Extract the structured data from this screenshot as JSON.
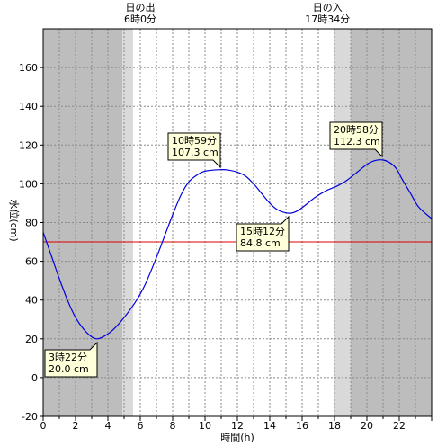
{
  "chart_data": {
    "type": "line",
    "xlabel": "時間(h)",
    "ylabel": "水位(cm)",
    "xlim": [
      0,
      24
    ],
    "ylim": [
      -20,
      180
    ],
    "x_ticks": [
      "0",
      "2",
      "4",
      "6",
      "8",
      "10",
      "12",
      "14",
      "16",
      "18",
      "20",
      "22"
    ],
    "y_ticks": [
      "-20",
      "0",
      "20",
      "40",
      "60",
      "80",
      "100",
      "120",
      "140",
      "160"
    ],
    "grid": true,
    "reference_line": {
      "value": 70,
      "color": "#e00000"
    },
    "sun": {
      "sunrise": {
        "title": "日の出",
        "time": "6時0分",
        "hour": 6.0
      },
      "sunset": {
        "title": "日の入",
        "time": "17時34分",
        "hour": 17.57
      }
    },
    "shading": {
      "night_color": "#bdbdbd",
      "twilight_color": "#d9d9d9",
      "dawn_twilight": [
        4.9,
        5.55
      ],
      "dusk_twilight": [
        18.0,
        19.0
      ]
    },
    "series": [
      {
        "color": "#0000dd",
        "x": [
          0,
          0.5,
          1,
          1.5,
          2,
          2.5,
          3,
          3.37,
          3.8,
          4.3,
          5,
          5.7,
          6.3,
          7,
          7.5,
          8,
          8.5,
          9,
          9.5,
          10,
          10.98,
          11.5,
          12,
          12.5,
          13,
          13.5,
          14,
          14.5,
          15.2,
          15.7,
          16.2,
          16.8,
          17.5,
          18.2,
          18.8,
          19.4,
          20,
          20.5,
          20.97,
          21.4,
          21.8,
          22.2,
          22.7,
          23.2,
          24
        ],
        "y": [
          75,
          63,
          51,
          40,
          31,
          25,
          21,
          20,
          21.5,
          24.5,
          31,
          39,
          48,
          62,
          73,
          84,
          94,
          101,
          104.5,
          106.5,
          107.3,
          107,
          106,
          104,
          100,
          95,
          90,
          86.5,
          84.8,
          86,
          89,
          93,
          96.5,
          99,
          102,
          106,
          110,
          112,
          112.3,
          111,
          108,
          102,
          95,
          88,
          82
        ]
      }
    ],
    "annotations": [
      {
        "line1": "3時22分",
        "line2": "20.0 cm",
        "x": 3.37,
        "y": 20.0
      },
      {
        "line1": "10時59分",
        "line2": "107.3 cm",
        "x": 10.98,
        "y": 107.3
      },
      {
        "line1": "15時12分",
        "line2": "84.8 cm",
        "x": 15.2,
        "y": 84.8
      },
      {
        "line1": "20時58分",
        "line2": "112.3 cm",
        "x": 20.97,
        "y": 112.3
      }
    ]
  }
}
